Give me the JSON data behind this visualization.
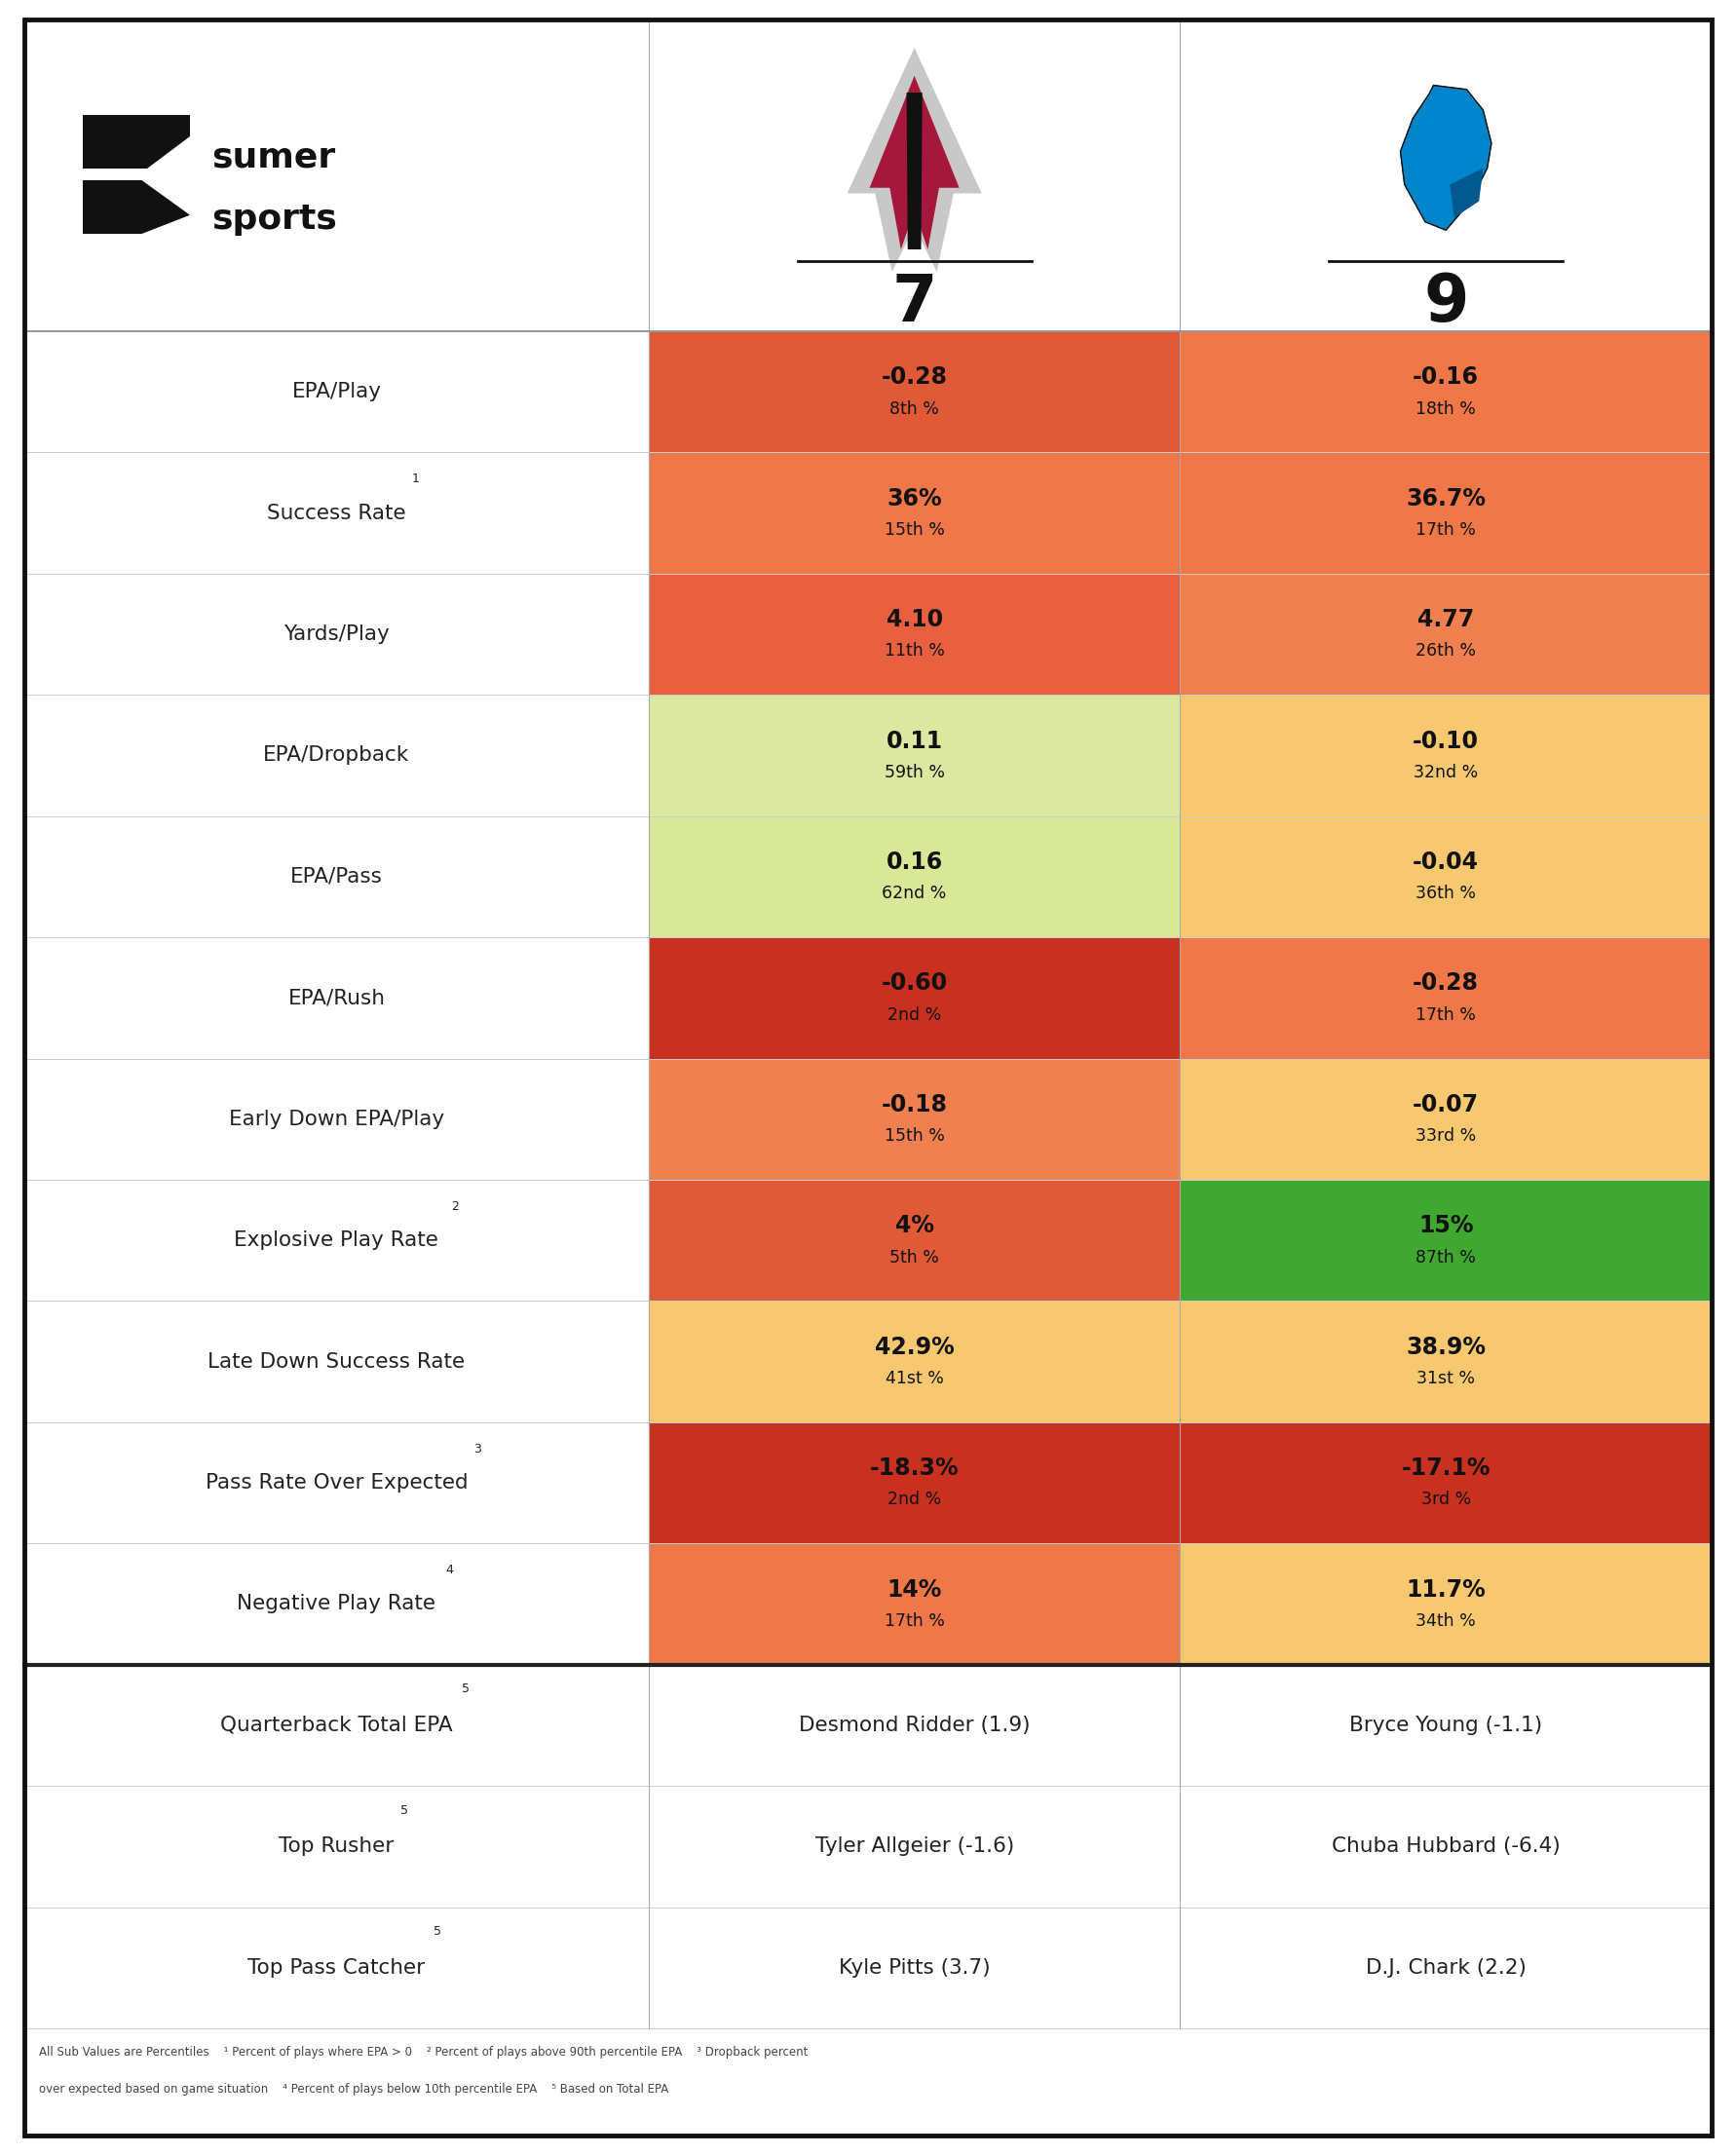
{
  "team1_score": "7",
  "team2_score": "9",
  "rows": [
    {
      "label": "EPA/Play",
      "superscript": "",
      "team1_val": "-0.28",
      "team1_pct": "8th %",
      "team1_color": "#E05A38",
      "team2_val": "-0.16",
      "team2_pct": "18th %",
      "team2_color": "#F07848"
    },
    {
      "label": "Success Rate",
      "superscript": "1",
      "team1_val": "36%",
      "team1_pct": "15th %",
      "team1_color": "#F07848",
      "team2_val": "36.7%",
      "team2_pct": "17th %",
      "team2_color": "#F07848"
    },
    {
      "label": "Yards/Play",
      "superscript": "",
      "team1_val": "4.10",
      "team1_pct": "11th %",
      "team1_color": "#E86040",
      "team2_val": "4.77",
      "team2_pct": "26th %",
      "team2_color": "#F08050"
    },
    {
      "label": "EPA/Dropback",
      "superscript": "",
      "team1_val": "0.11",
      "team1_pct": "59th %",
      "team1_color": "#DCE8A0",
      "team2_val": "-0.10",
      "team2_pct": "32nd %",
      "team2_color": "#F8C870"
    },
    {
      "label": "EPA/Pass",
      "superscript": "",
      "team1_val": "0.16",
      "team1_pct": "62nd %",
      "team1_color": "#D8E898",
      "team2_val": "-0.04",
      "team2_pct": "36th %",
      "team2_color": "#F8C870"
    },
    {
      "label": "EPA/Rush",
      "superscript": "",
      "team1_val": "-0.60",
      "team1_pct": "2nd %",
      "team1_color": "#C83020",
      "team2_val": "-0.28",
      "team2_pct": "17th %",
      "team2_color": "#F07848"
    },
    {
      "label": "Early Down EPA/Play",
      "superscript": "",
      "team1_val": "-0.18",
      "team1_pct": "15th %",
      "team1_color": "#F08050",
      "team2_val": "-0.07",
      "team2_pct": "33rd %",
      "team2_color": "#F8C870"
    },
    {
      "label": "Explosive Play Rate",
      "superscript": "2",
      "team1_val": "4%",
      "team1_pct": "5th %",
      "team1_color": "#E05A38",
      "team2_val": "15%",
      "team2_pct": "87th %",
      "team2_color": "#40A830"
    },
    {
      "label": "Late Down Success Rate",
      "superscript": "",
      "team1_val": "42.9%",
      "team1_pct": "41st %",
      "team1_color": "#F8C870",
      "team2_val": "38.9%",
      "team2_pct": "31st %",
      "team2_color": "#F8C870"
    },
    {
      "label": "Pass Rate Over Expected",
      "superscript": "3",
      "team1_val": "-18.3%",
      "team1_pct": "2nd %",
      "team1_color": "#C83020",
      "team2_val": "-17.1%",
      "team2_pct": "3rd %",
      "team2_color": "#C83020"
    },
    {
      "label": "Negative Play Rate",
      "superscript": "4",
      "team1_val": "14%",
      "team1_pct": "17th %",
      "team1_color": "#F07848",
      "team2_val": "11.7%",
      "team2_pct": "34th %",
      "team2_color": "#F8C870"
    }
  ],
  "text_rows": [
    {
      "label": "Quarterback Total EPA",
      "superscript": "5",
      "team1_val": "Desmond Ridder (1.9)",
      "team2_val": "Bryce Young (-1.1)"
    },
    {
      "label": "Top Rusher",
      "superscript": "5",
      "team1_val": "Tyler Allgeier (-1.6)",
      "team2_val": "Chuba Hubbard (-6.4)"
    },
    {
      "label": "Top Pass Catcher",
      "superscript": "5",
      "team1_val": "Kyle Pitts (3.7)",
      "team2_val": "D.J. Chark (2.2)"
    }
  ],
  "footnote_line1": "All Sub Values are Percentiles    ¹ Percent of plays where EPA > 0    ² Percent of plays above 90th percentile EPA    ³ Dropback percent",
  "footnote_line2": "over expected based on game situation    ⁴ Percent of plays below 10th percentile EPA    ⁵ Based on Total EPA",
  "bg_color": "#FFFFFF"
}
